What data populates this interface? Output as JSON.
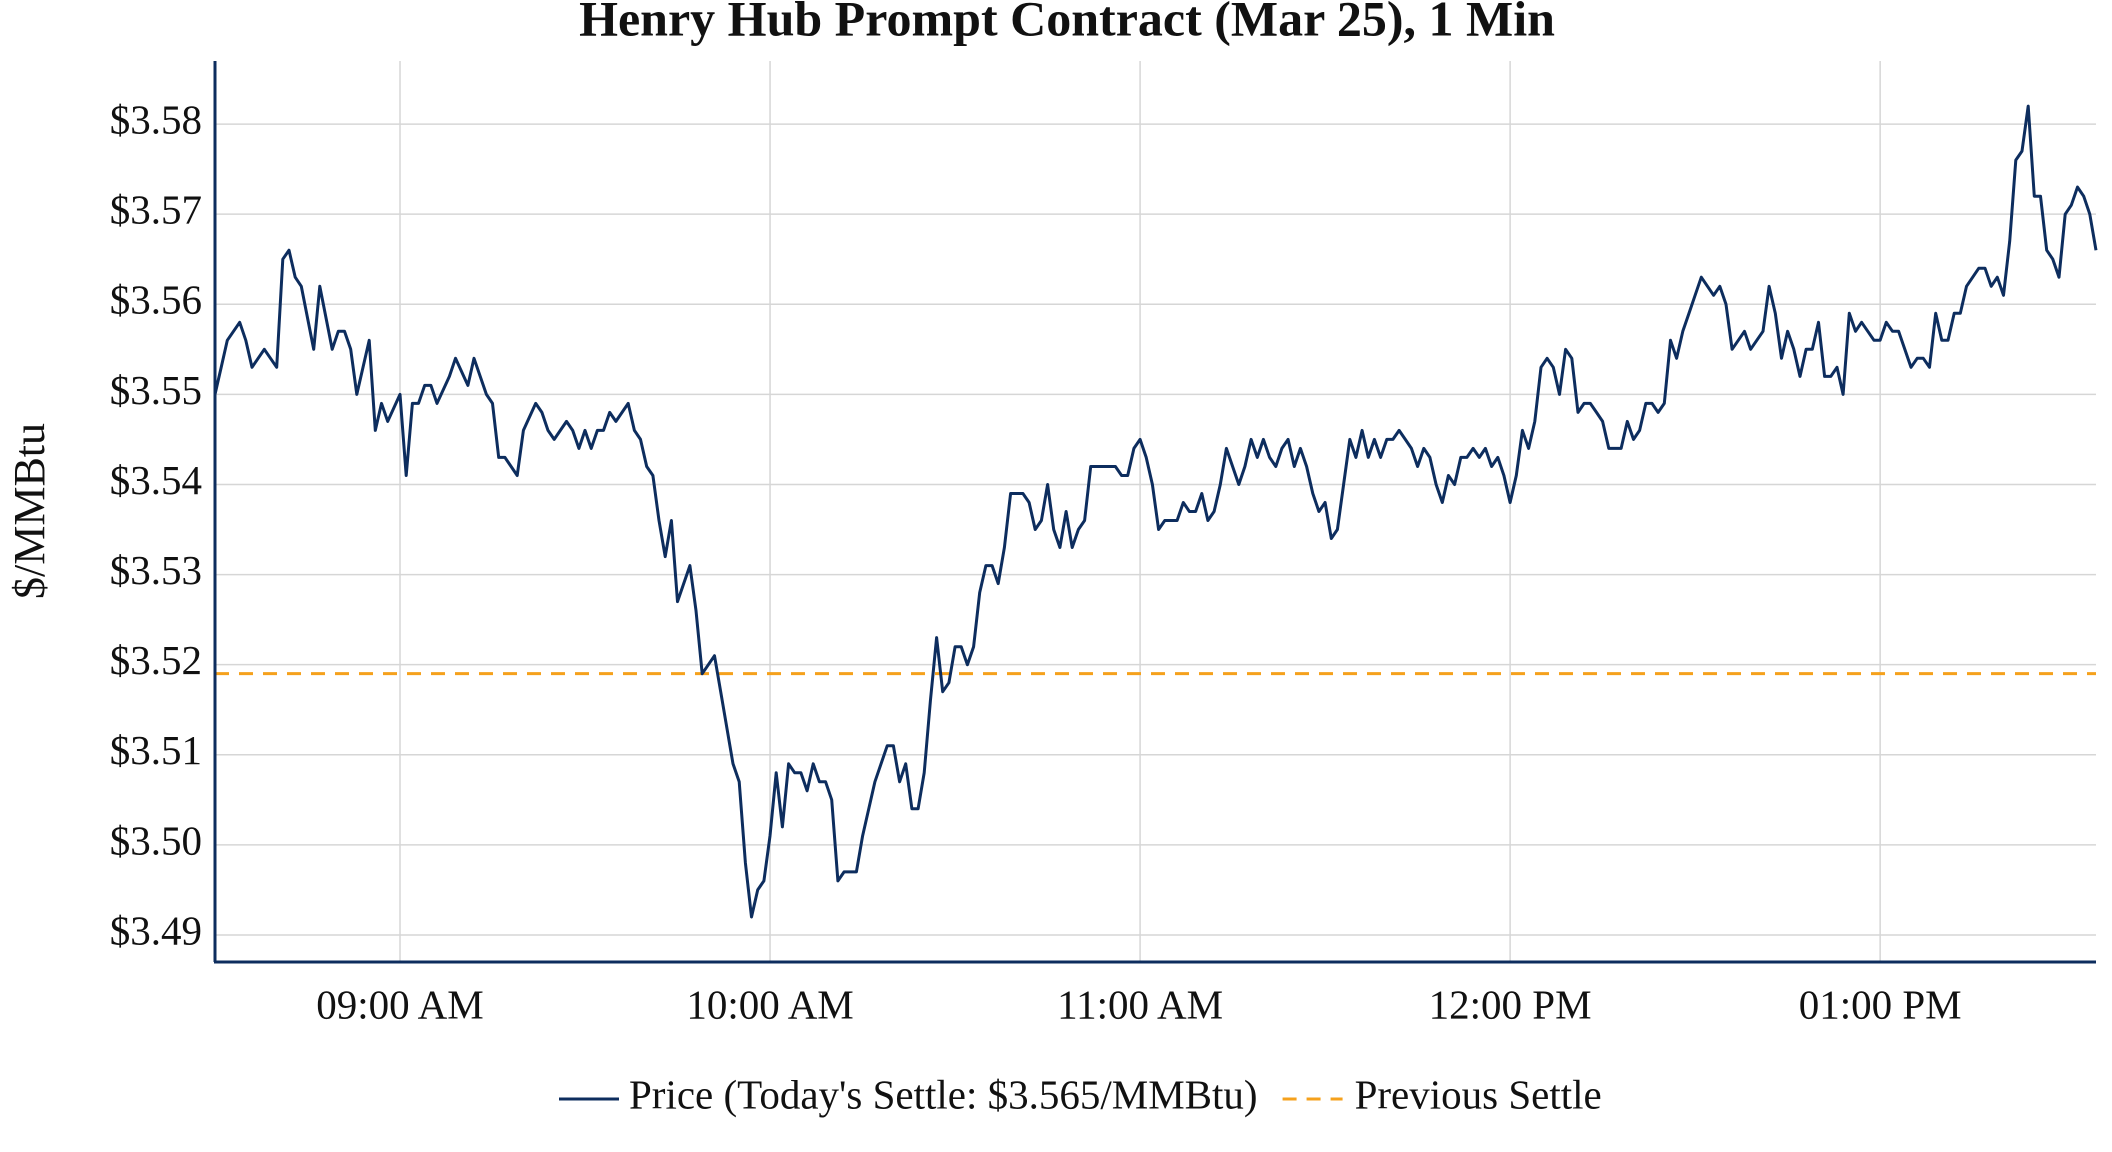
{
  "chart_data": {
    "type": "line",
    "title": "Henry Hub Prompt Contract (Mar 25), 1 Min",
    "y_label": "$/MMBtu",
    "x": [
      "08:30 AM",
      "08:31 AM",
      "08:32 AM",
      "08:34 AM",
      "08:35 AM",
      "08:36 AM",
      "08:38 AM",
      "08:40 AM",
      "08:41 AM",
      "08:42 AM",
      "08:43 AM",
      "08:44 AM",
      "08:46 AM",
      "08:47 AM",
      "08:49 AM",
      "08:50 AM",
      "08:51 AM",
      "08:52 AM",
      "08:53 AM",
      "08:55 AM",
      "08:56 AM",
      "08:57 AM",
      "08:58 AM",
      "09:00 AM",
      "09:01 AM",
      "09:02 AM",
      "09:03 AM",
      "09:04 AM",
      "09:05 AM",
      "09:06 AM",
      "09:08 AM",
      "09:09 AM",
      "09:11 AM",
      "09:12 AM",
      "09:14 AM",
      "09:15 AM",
      "09:16 AM",
      "09:17 AM",
      "09:19 AM",
      "09:20 AM",
      "09:22 AM",
      "09:23 AM",
      "09:24 AM",
      "09:25 AM",
      "09:27 AM",
      "09:28 AM",
      "09:29 AM",
      "09:30 AM",
      "09:31 AM",
      "09:32 AM",
      "09:33 AM",
      "09:34 AM",
      "09:35 AM",
      "09:37 AM",
      "09:38 AM",
      "09:39 AM",
      "09:40 AM",
      "09:41 AM",
      "09:42 AM",
      "09:43 AM",
      "09:44 AM",
      "09:45 AM",
      "09:47 AM",
      "09:48 AM",
      "09:49 AM",
      "09:51 AM",
      "09:52 AM",
      "09:54 AM",
      "09:55 AM",
      "09:56 AM",
      "09:57 AM",
      "09:58 AM",
      "09:59 AM",
      "10:00 AM",
      "10:01 AM",
      "10:02 AM",
      "10:03 AM",
      "10:04 AM",
      "10:05 AM",
      "10:06 AM",
      "10:07 AM",
      "10:08 AM",
      "10:09 AM",
      "10:10 AM",
      "10:11 AM",
      "10:12 AM",
      "10:14 AM",
      "10:15 AM",
      "10:17 AM",
      "10:19 AM",
      "10:20 AM",
      "10:21 AM",
      "10:22 AM",
      "10:23 AM",
      "10:24 AM",
      "10:25 AM",
      "10:26 AM",
      "10:27 AM",
      "10:28 AM",
      "10:29 AM",
      "10:30 AM",
      "10:31 AM",
      "10:32 AM",
      "10:33 AM",
      "10:34 AM",
      "10:35 AM",
      "10:36 AM",
      "10:37 AM",
      "10:38 AM",
      "10:39 AM",
      "10:41 AM",
      "10:42 AM",
      "10:43 AM",
      "10:44 AM",
      "10:45 AM",
      "10:46 AM",
      "10:47 AM",
      "10:48 AM",
      "10:49 AM",
      "10:50 AM",
      "10:51 AM",
      "10:52 AM",
      "10:54 AM",
      "10:56 AM",
      "10:57 AM",
      "10:58 AM",
      "10:59 AM",
      "11:00 AM",
      "11:01 AM",
      "11:02 AM",
      "11:03 AM",
      "11:04 AM",
      "11:06 AM",
      "11:07 AM",
      "11:08 AM",
      "11:09 AM",
      "11:10 AM",
      "11:11 AM",
      "11:12 AM",
      "11:13 AM",
      "11:14 AM",
      "11:15 AM",
      "11:16 AM",
      "11:17 AM",
      "11:18 AM",
      "11:19 AM",
      "11:20 AM",
      "11:21 AM",
      "11:22 AM",
      "11:23 AM",
      "11:24 AM",
      "11:25 AM",
      "11:26 AM",
      "11:27 AM",
      "11:28 AM",
      "11:29 AM",
      "11:30 AM",
      "11:31 AM",
      "11:32 AM",
      "11:33 AM",
      "11:34 AM",
      "11:35 AM",
      "11:36 AM",
      "11:37 AM",
      "11:38 AM",
      "11:39 AM",
      "11:40 AM",
      "11:41 AM",
      "11:42 AM",
      "11:43 AM",
      "11:44 AM",
      "11:45 AM",
      "11:46 AM",
      "11:47 AM",
      "11:48 AM",
      "11:49 AM",
      "11:50 AM",
      "11:51 AM",
      "11:52 AM",
      "11:53 AM",
      "11:54 AM",
      "11:55 AM",
      "11:56 AM",
      "11:57 AM",
      "11:58 AM",
      "11:59 AM",
      "12:00 PM",
      "12:01 PM",
      "12:02 PM",
      "12:03 PM",
      "12:04 PM",
      "12:05 PM",
      "12:06 PM",
      "12:07 PM",
      "12:08 PM",
      "12:09 PM",
      "12:10 PM",
      "12:11 PM",
      "12:12 PM",
      "12:13 PM",
      "12:14 PM",
      "12:15 PM",
      "12:16 PM",
      "12:18 PM",
      "12:19 PM",
      "12:20 PM",
      "12:21 PM",
      "12:22 PM",
      "12:23 PM",
      "12:24 PM",
      "12:25 PM",
      "12:26 PM",
      "12:27 PM",
      "12:28 PM",
      "12:29 PM",
      "12:30 PM",
      "12:31 PM",
      "12:32 PM",
      "12:33 PM",
      "12:34 PM",
      "12:35 PM",
      "12:36 PM",
      "12:37 PM",
      "12:38 PM",
      "12:39 PM",
      "12:40 PM",
      "12:41 PM",
      "12:42 PM",
      "12:43 PM",
      "12:44 PM",
      "12:45 PM",
      "12:46 PM",
      "12:47 PM",
      "12:48 PM",
      "12:49 PM",
      "12:50 PM",
      "12:51 PM",
      "12:52 PM",
      "12:53 PM",
      "12:54 PM",
      "12:55 PM",
      "12:56 PM",
      "12:57 PM",
      "12:58 PM",
      "12:59 PM",
      "01:00 PM",
      "01:01 PM",
      "01:02 PM",
      "01:03 PM",
      "01:04 PM",
      "01:05 PM",
      "01:06 PM",
      "01:07 PM",
      "01:08 PM",
      "01:09 PM",
      "01:10 PM",
      "01:11 PM",
      "01:12 PM",
      "01:13 PM",
      "01:14 PM",
      "01:15 PM",
      "01:16 PM",
      "01:17 PM",
      "01:18 PM",
      "01:19 PM",
      "01:20 PM",
      "01:21 PM",
      "01:22 PM",
      "01:23 PM",
      "01:24 PM",
      "01:25 PM",
      "01:26 PM",
      "01:27 PM",
      "01:28 PM",
      "01:29 PM",
      "01:30 PM",
      "01:31 PM",
      "01:32 PM",
      "01:33 PM",
      "01:34 PM",
      "01:35 PM"
    ],
    "series": [
      {
        "name": "Price (Today's Settle: $3.565/MMBtu)",
        "color": "#0d2d5e",
        "values": [
          3.55,
          3.553,
          3.556,
          3.558,
          3.556,
          3.553,
          3.555,
          3.553,
          3.565,
          3.566,
          3.563,
          3.562,
          3.555,
          3.562,
          3.555,
          3.557,
          3.557,
          3.555,
          3.55,
          3.556,
          3.546,
          3.549,
          3.547,
          3.55,
          3.541,
          3.549,
          3.549,
          3.551,
          3.551,
          3.549,
          3.552,
          3.554,
          3.551,
          3.554,
          3.55,
          3.549,
          3.543,
          3.543,
          3.541,
          3.546,
          3.549,
          3.548,
          3.546,
          3.545,
          3.547,
          3.546,
          3.544,
          3.546,
          3.544,
          3.546,
          3.546,
          3.548,
          3.547,
          3.549,
          3.546,
          3.545,
          3.542,
          3.541,
          3.536,
          3.532,
          3.536,
          3.527,
          3.531,
          3.526,
          3.519,
          3.521,
          3.517,
          3.509,
          3.507,
          3.498,
          3.492,
          3.495,
          3.496,
          3.501,
          3.508,
          3.502,
          3.509,
          3.508,
          3.508,
          3.506,
          3.509,
          3.507,
          3.507,
          3.505,
          3.496,
          3.497,
          3.497,
          3.501,
          3.507,
          3.511,
          3.511,
          3.507,
          3.509,
          3.504,
          3.504,
          3.508,
          3.516,
          3.523,
          3.517,
          3.518,
          3.522,
          3.522,
          3.52,
          3.522,
          3.528,
          3.531,
          3.531,
          3.529,
          3.533,
          3.539,
          3.539,
          3.538,
          3.535,
          3.536,
          3.54,
          3.535,
          3.533,
          3.537,
          3.533,
          3.535,
          3.536,
          3.542,
          3.542,
          3.542,
          3.541,
          3.541,
          3.544,
          3.545,
          3.543,
          3.54,
          3.535,
          3.536,
          3.536,
          3.538,
          3.537,
          3.537,
          3.539,
          3.536,
          3.537,
          3.54,
          3.544,
          3.542,
          3.54,
          3.542,
          3.545,
          3.543,
          3.545,
          3.543,
          3.542,
          3.544,
          3.545,
          3.542,
          3.544,
          3.542,
          3.539,
          3.537,
          3.538,
          3.534,
          3.535,
          3.54,
          3.545,
          3.543,
          3.546,
          3.543,
          3.545,
          3.543,
          3.545,
          3.545,
          3.546,
          3.545,
          3.544,
          3.542,
          3.544,
          3.543,
          3.54,
          3.538,
          3.541,
          3.54,
          3.543,
          3.543,
          3.544,
          3.543,
          3.544,
          3.542,
          3.543,
          3.541,
          3.538,
          3.541,
          3.546,
          3.544,
          3.547,
          3.553,
          3.554,
          3.553,
          3.55,
          3.555,
          3.554,
          3.548,
          3.549,
          3.549,
          3.548,
          3.547,
          3.544,
          3.544,
          3.547,
          3.545,
          3.546,
          3.549,
          3.549,
          3.548,
          3.549,
          3.556,
          3.554,
          3.557,
          3.559,
          3.561,
          3.563,
          3.562,
          3.561,
          3.562,
          3.56,
          3.555,
          3.556,
          3.557,
          3.555,
          3.556,
          3.557,
          3.562,
          3.559,
          3.554,
          3.557,
          3.555,
          3.552,
          3.555,
          3.555,
          3.558,
          3.552,
          3.552,
          3.553,
          3.55,
          3.559,
          3.557,
          3.558,
          3.557,
          3.556,
          3.556,
          3.558,
          3.557,
          3.557,
          3.555,
          3.553,
          3.554,
          3.554,
          3.553,
          3.559,
          3.556,
          3.556,
          3.559,
          3.559,
          3.562,
          3.563,
          3.564,
          3.564,
          3.562,
          3.563,
          3.561,
          3.567,
          3.576,
          3.577,
          3.582,
          3.572,
          3.572,
          3.566,
          3.565,
          3.563,
          3.57,
          3.571,
          3.573,
          3.572,
          3.57,
          3.566
        ]
      }
    ],
    "reference_lines": [
      {
        "name": "Previous Settle",
        "value": 3.519,
        "color": "#f5a11c",
        "dashed": true
      }
    ],
    "xlim": [
      "08:30 AM",
      "01:35 PM"
    ],
    "xticks": [
      "09:00 AM",
      "10:00 AM",
      "11:00 AM",
      "12:00 PM",
      "01:00 PM"
    ],
    "ylim": [
      3.487,
      3.587
    ],
    "yticks": [
      {
        "value": 3.49,
        "label": "$3.49"
      },
      {
        "value": 3.5,
        "label": "$3.50"
      },
      {
        "value": 3.51,
        "label": "$3.51"
      },
      {
        "value": 3.52,
        "label": "$3.52"
      },
      {
        "value": 3.53,
        "label": "$3.53"
      },
      {
        "value": 3.54,
        "label": "$3.54"
      },
      {
        "value": 3.55,
        "label": "$3.55"
      },
      {
        "value": 3.56,
        "label": "$3.56"
      },
      {
        "value": 3.57,
        "label": "$3.57"
      },
      {
        "value": 3.58,
        "label": "$3.58"
      }
    ],
    "grid": true,
    "legend": "bottom"
  }
}
